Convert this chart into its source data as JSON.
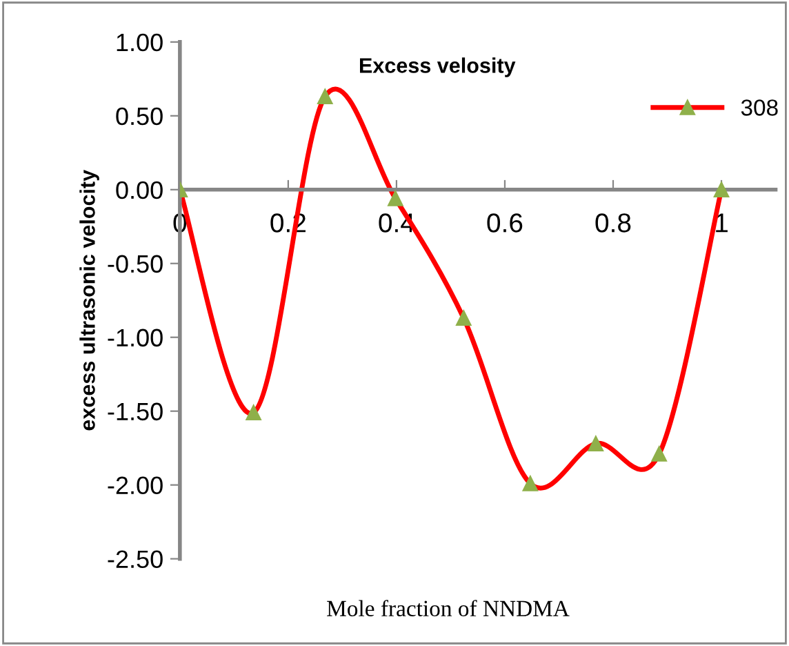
{
  "chart_data": {
    "type": "line",
    "title": "Excess velosity",
    "xlabel": "Mole fraction of NNDMA",
    "ylabel": "excess ultrasonic velocity",
    "x": [
      0,
      0.136,
      0.268,
      0.398,
      0.524,
      0.647,
      0.768,
      0.885,
      1
    ],
    "series": [
      {
        "name": "308",
        "color": "#ff0000",
        "colors": [
          "#8fb04a",
          "#8fb04a",
          "#8fb04a",
          "#8fb04a",
          "#8fb04a",
          "#8fb04a",
          "#8fb04a",
          "#8fb04a",
          "#8fb04a"
        ],
        "values": [
          0,
          -1.51,
          0.63,
          -0.06,
          -0.87,
          -1.99,
          -1.72,
          -1.79,
          0
        ]
      }
    ],
    "xlim": [
      0,
      1.1
    ],
    "xticks": [
      0,
      0.2,
      0.4,
      0.6,
      0.8,
      1
    ],
    "ylim": [
      -2.5,
      1.0
    ],
    "yticks": [
      {
        "value": 1.0,
        "label": "1.00"
      },
      {
        "value": 0.5,
        "label": "0.50"
      },
      {
        "value": 0,
        "label": "0.00"
      },
      {
        "value": -0.5,
        "label": "-0.50"
      },
      {
        "value": -1.0,
        "label": "-1.00"
      },
      {
        "value": -1.5,
        "label": "-1.50"
      },
      {
        "value": -2.0,
        "label": "-2.00"
      },
      {
        "value": -2.5,
        "label": "-2.50"
      }
    ],
    "grid": false,
    "legend": "top right",
    "marker": "triangle",
    "line_style": "solid"
  }
}
